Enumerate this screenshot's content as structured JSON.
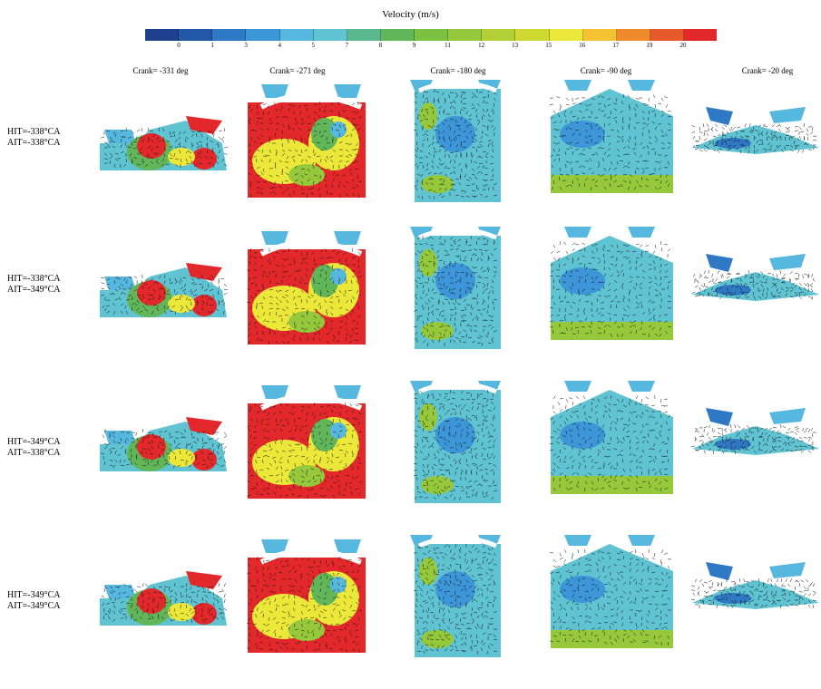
{
  "colorbar": {
    "title": "Velocity (m/s)",
    "ticks": [
      "0",
      "1",
      "3",
      "4",
      "5",
      "7",
      "8",
      "9",
      "11",
      "12",
      "13",
      "15",
      "16",
      "17",
      "19",
      "20"
    ],
    "colors": [
      "#1f3f8f",
      "#2357a8",
      "#2f78c4",
      "#3d96d8",
      "#56b7df",
      "#5fc3d2",
      "#5bb88d",
      "#62b65a",
      "#7cc141",
      "#96c83b",
      "#b3cf36",
      "#cdd830",
      "#ece83a",
      "#f4c232",
      "#ef8a2d",
      "#e85a2b",
      "#e2282b"
    ]
  },
  "columns": [
    "Crank= -331 deg",
    "Crank= -271 deg",
    "Crank= -180 deg",
    "Crank= -90 deg",
    "Crank= -20 deg"
  ],
  "rows": [
    {
      "hit": "HIT=-338°CA",
      "ait": "AIT=-338°CA"
    },
    {
      "hit": "HIT=-338°CA",
      "ait": "AIT=-349°CA"
    },
    {
      "hit": "HIT=-349°CA",
      "ait": "AIT=-338°CA"
    },
    {
      "hit": "HIT=-349°CA",
      "ait": "AIT=-349°CA"
    }
  ]
}
